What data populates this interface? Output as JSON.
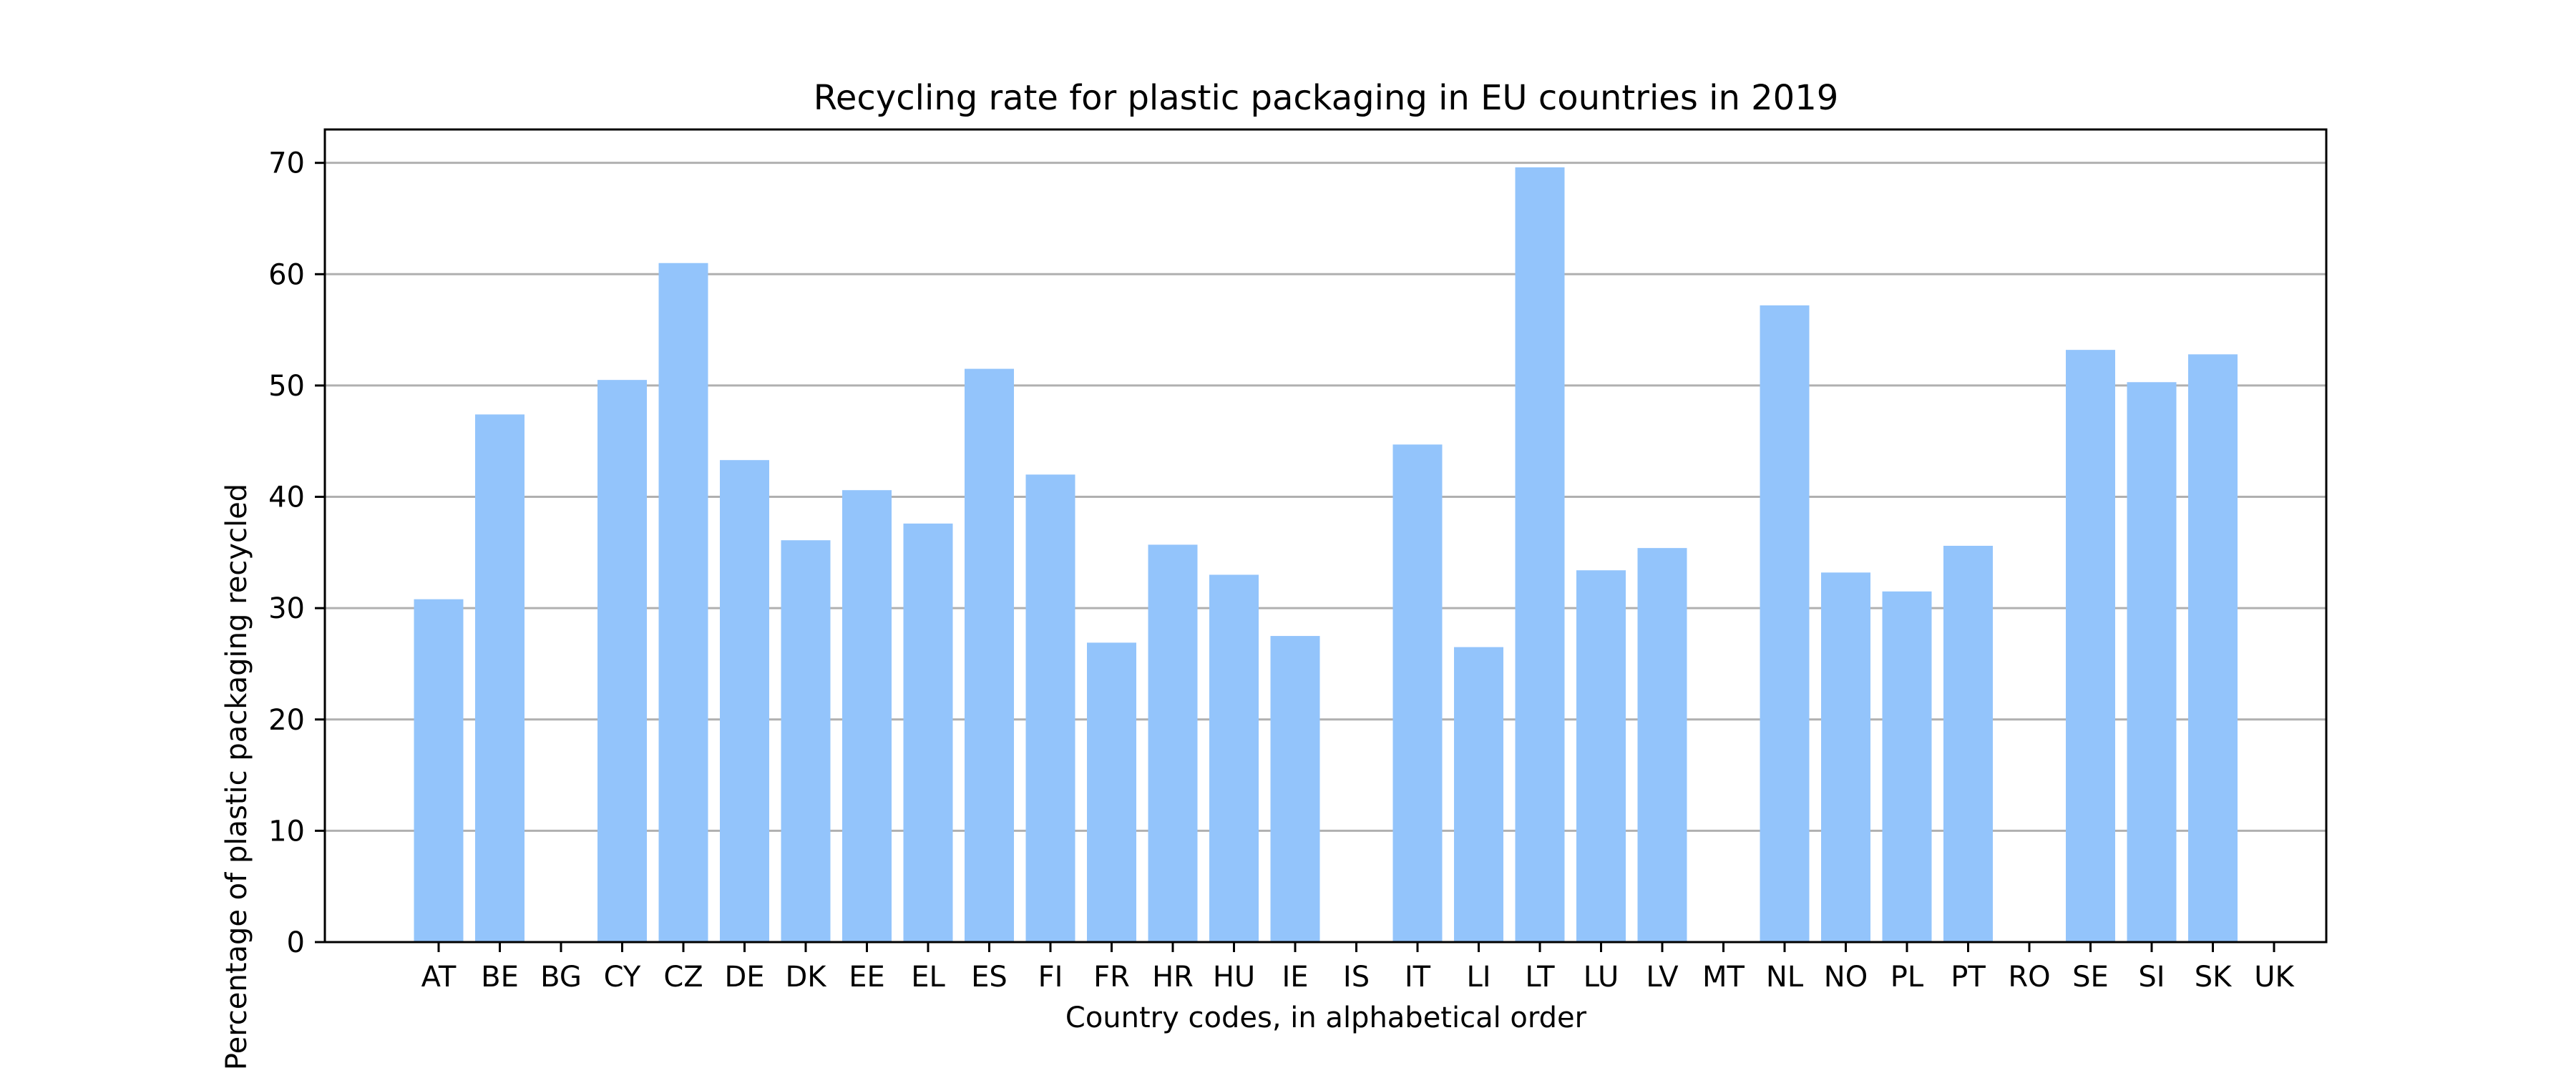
{
  "colors": {
    "bar": "#93c4fb",
    "grid": "#b0b0b0",
    "axis": "#000000",
    "background": "#ffffff"
  },
  "chart_data": {
    "type": "bar",
    "title": "Recycling rate for plastic packaging in EU countries in 2019",
    "xlabel": "Country codes, in alphabetical order",
    "ylabel": "Percentage of plastic packaging recycled",
    "ylim": [
      0,
      73
    ],
    "yticks": [
      0,
      10,
      20,
      30,
      40,
      50,
      60,
      70
    ],
    "grid": "horizontal",
    "categories": [
      "AT",
      "BE",
      "BG",
      "CY",
      "CZ",
      "DE",
      "DK",
      "EE",
      "EL",
      "ES",
      "FI",
      "FR",
      "HR",
      "HU",
      "IE",
      "IS",
      "IT",
      "LI",
      "LT",
      "LU",
      "LV",
      "MT",
      "NL",
      "NO",
      "PL",
      "PT",
      "RO",
      "SE",
      "SI",
      "SK",
      "UK"
    ],
    "values": [
      30.8,
      47.4,
      null,
      50.5,
      61.0,
      43.3,
      36.1,
      40.6,
      37.6,
      51.5,
      42.0,
      26.9,
      35.7,
      33.0,
      27.5,
      null,
      44.7,
      26.5,
      69.6,
      33.4,
      35.4,
      null,
      57.2,
      33.2,
      31.5,
      35.6,
      null,
      53.2,
      50.3,
      52.8,
      null
    ]
  }
}
